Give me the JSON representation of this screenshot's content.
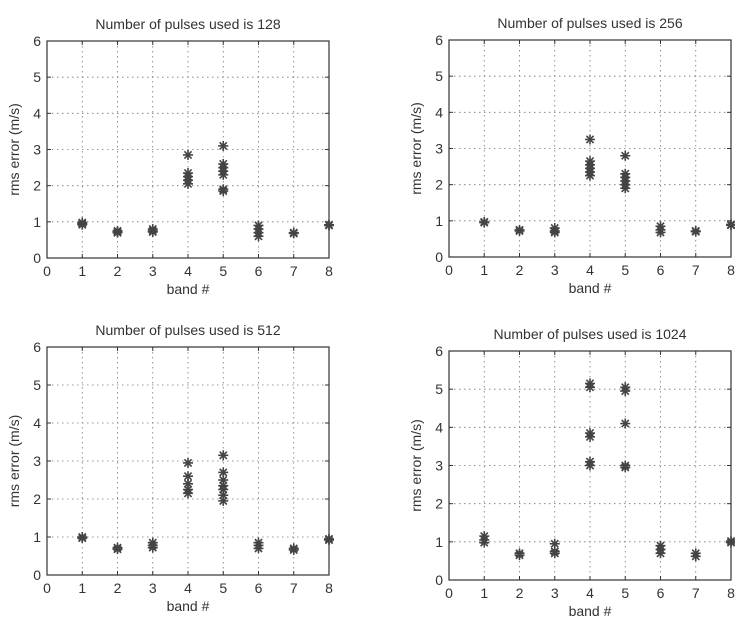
{
  "chart_data": [
    {
      "type": "scatter",
      "title": "Number of pulses used is 128",
      "xlabel": "band #",
      "ylabel": "rms error (m/s)",
      "xlim": [
        0,
        8
      ],
      "ylim": [
        0,
        6
      ],
      "xticks": [
        "0",
        "1",
        "2",
        "3",
        "4",
        "5",
        "6",
        "7",
        "8"
      ],
      "yticks": [
        "0",
        "1",
        "2",
        "3",
        "4",
        "5",
        "6"
      ],
      "grid": true,
      "points": [
        [
          1,
          0.95
        ],
        [
          1,
          0.98
        ],
        [
          1,
          0.92
        ],
        [
          2,
          0.72
        ],
        [
          2,
          0.75
        ],
        [
          2,
          0.7
        ],
        [
          3,
          0.75
        ],
        [
          3,
          0.8
        ],
        [
          3,
          0.72
        ],
        [
          4,
          2.85
        ],
        [
          4,
          2.35
        ],
        [
          4,
          2.25
        ],
        [
          4,
          2.15
        ],
        [
          4,
          2.05
        ],
        [
          5,
          3.1
        ],
        [
          5,
          2.6
        ],
        [
          5,
          2.5
        ],
        [
          5,
          2.4
        ],
        [
          5,
          2.3
        ],
        [
          5,
          1.9
        ],
        [
          5,
          1.85
        ],
        [
          6,
          0.9
        ],
        [
          6,
          0.8
        ],
        [
          6,
          0.7
        ],
        [
          6,
          0.6
        ],
        [
          7,
          0.7
        ],
        [
          7,
          0.68
        ],
        [
          8,
          0.92
        ],
        [
          8,
          0.9
        ]
      ]
    },
    {
      "type": "scatter",
      "title": "Number of pulses used is 256",
      "xlabel": "band #",
      "ylabel": "rms error (m/s)",
      "xlim": [
        0,
        8
      ],
      "ylim": [
        0,
        6
      ],
      "xticks": [
        "0",
        "1",
        "2",
        "3",
        "4",
        "5",
        "6",
        "7",
        "8"
      ],
      "yticks": [
        "0",
        "1",
        "2",
        "3",
        "4",
        "5",
        "6"
      ],
      "grid": true,
      "points": [
        [
          1,
          0.97
        ],
        [
          1,
          0.95
        ],
        [
          2,
          0.75
        ],
        [
          2,
          0.72
        ],
        [
          3,
          0.8
        ],
        [
          3,
          0.72
        ],
        [
          3,
          0.68
        ],
        [
          4,
          3.25
        ],
        [
          4,
          2.65
        ],
        [
          4,
          2.55
        ],
        [
          4,
          2.45
        ],
        [
          4,
          2.35
        ],
        [
          4,
          2.25
        ],
        [
          5,
          2.8
        ],
        [
          5,
          2.3
        ],
        [
          5,
          2.2
        ],
        [
          5,
          2.1
        ],
        [
          5,
          2.0
        ],
        [
          5,
          1.9
        ],
        [
          6,
          0.85
        ],
        [
          6,
          0.75
        ],
        [
          6,
          0.68
        ],
        [
          7,
          0.72
        ],
        [
          7,
          0.7
        ],
        [
          8,
          0.9
        ],
        [
          8,
          0.88
        ]
      ]
    },
    {
      "type": "scatter",
      "title": "Number of pulses used is 512",
      "xlabel": "band #",
      "ylabel": "rms error (m/s)",
      "xlim": [
        0,
        8
      ],
      "ylim": [
        0,
        6
      ],
      "xticks": [
        "0",
        "1",
        "2",
        "3",
        "4",
        "5",
        "6",
        "7",
        "8"
      ],
      "yticks": [
        "0",
        "1",
        "2",
        "3",
        "4",
        "5",
        "6"
      ],
      "grid": true,
      "points": [
        [
          1,
          1.0
        ],
        [
          1,
          0.97
        ],
        [
          2,
          0.72
        ],
        [
          2,
          0.68
        ],
        [
          3,
          0.85
        ],
        [
          3,
          0.78
        ],
        [
          3,
          0.72
        ],
        [
          4,
          2.95
        ],
        [
          4,
          2.6
        ],
        [
          4,
          2.4
        ],
        [
          4,
          2.25
        ],
        [
          4,
          2.15
        ],
        [
          5,
          3.15
        ],
        [
          5,
          2.7
        ],
        [
          5,
          2.5
        ],
        [
          5,
          2.35
        ],
        [
          5,
          2.25
        ],
        [
          5,
          2.1
        ],
        [
          5,
          1.95
        ],
        [
          6,
          0.85
        ],
        [
          6,
          0.78
        ],
        [
          6,
          0.7
        ],
        [
          7,
          0.7
        ],
        [
          7,
          0.66
        ],
        [
          8,
          0.95
        ],
        [
          8,
          0.92
        ]
      ]
    },
    {
      "type": "scatter",
      "title": "Number of pulses used is 1024",
      "xlabel": "band #",
      "ylabel": "rms error (m/s)",
      "xlim": [
        0,
        8
      ],
      "ylim": [
        0,
        6
      ],
      "xticks": [
        "0",
        "1",
        "2",
        "3",
        "4",
        "5",
        "6",
        "7",
        "8"
      ],
      "yticks": [
        "0",
        "1",
        "2",
        "3",
        "4",
        "5",
        "6"
      ],
      "grid": true,
      "points": [
        [
          1,
          1.15
        ],
        [
          1,
          1.05
        ],
        [
          1,
          0.98
        ],
        [
          2,
          0.7
        ],
        [
          2,
          0.65
        ],
        [
          3,
          0.95
        ],
        [
          3,
          0.75
        ],
        [
          3,
          0.7
        ],
        [
          4,
          5.15
        ],
        [
          4,
          5.05
        ],
        [
          4,
          3.85
        ],
        [
          4,
          3.75
        ],
        [
          4,
          3.1
        ],
        [
          4,
          3.0
        ],
        [
          5,
          5.05
        ],
        [
          5,
          4.95
        ],
        [
          5,
          4.1
        ],
        [
          5,
          3.0
        ],
        [
          5,
          2.95
        ],
        [
          6,
          0.9
        ],
        [
          6,
          0.8
        ],
        [
          6,
          0.7
        ],
        [
          7,
          0.7
        ],
        [
          7,
          0.62
        ],
        [
          8,
          1.02
        ],
        [
          8,
          0.98
        ]
      ]
    }
  ]
}
